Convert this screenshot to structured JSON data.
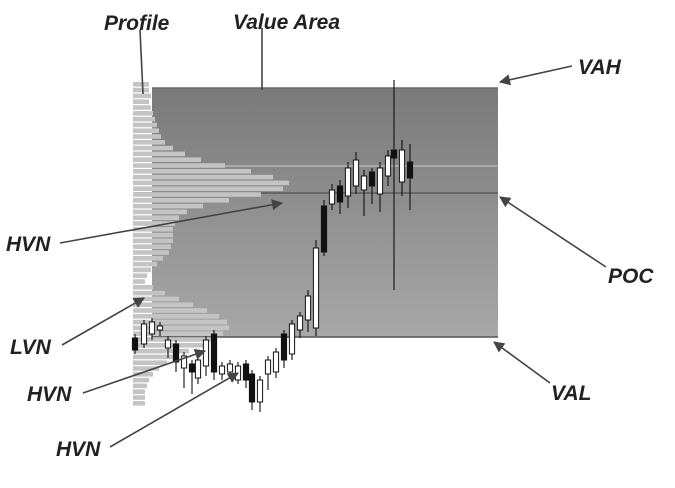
{
  "labels": {
    "profile": "Profile",
    "value_area": "Value Area",
    "vah": "VAH",
    "poc": "POC",
    "val": "VAL",
    "hvn_upper": "HVN",
    "lvn": "LVN",
    "hvn_mid": "HVN",
    "hvn_lower": "HVN"
  },
  "colors": {
    "background": "#ffffff",
    "value_area_top": "#7a7a7a",
    "value_area_bottom": "#a6a6a6",
    "profile_bars": "#c4c4c4",
    "ink": "#222222",
    "bull_candle_fill": "#ffffff",
    "bear_candle_fill": "#111111"
  }
}
